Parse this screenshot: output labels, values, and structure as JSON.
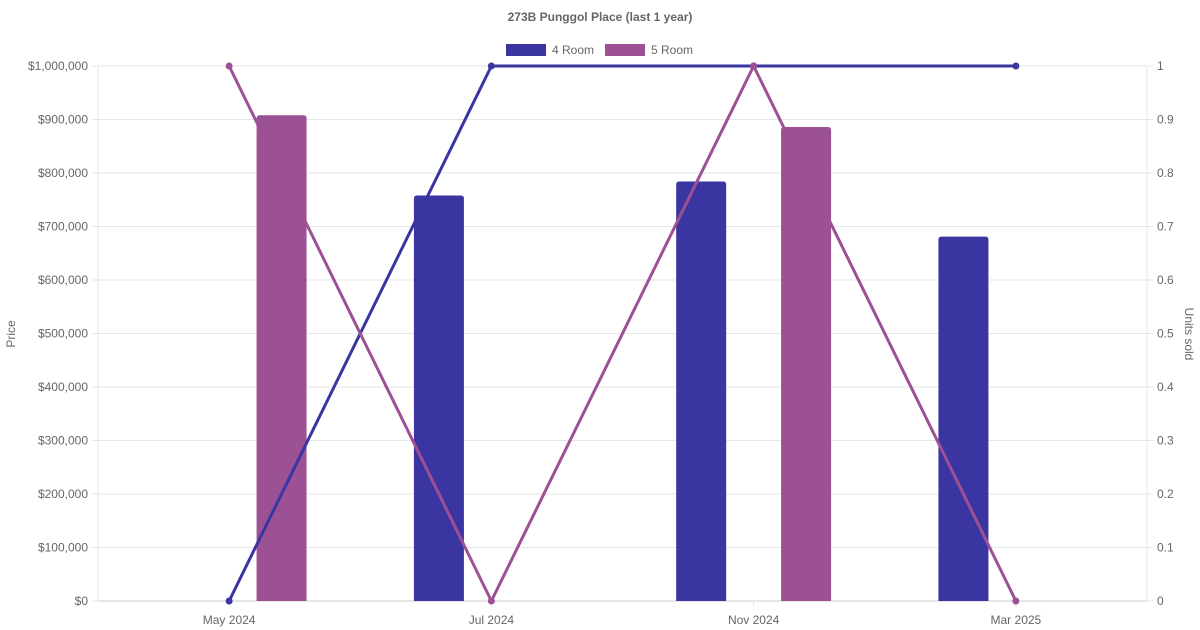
{
  "chart_data": {
    "type": "bar",
    "title": "273B Punggol Place (last 1 year)",
    "categories": [
      "May 2024",
      "Jul 2024",
      "Nov 2024",
      "Mar 2025"
    ],
    "y_left": {
      "label": "Price",
      "ylim": [
        0,
        1000000
      ],
      "ticks": [
        "$0",
        "$100,000",
        "$200,000",
        "$300,000",
        "$400,000",
        "$500,000",
        "$600,000",
        "$700,000",
        "$800,000",
        "$900,000",
        "$1,000,000"
      ],
      "tick_values": [
        0,
        100000,
        200000,
        300000,
        400000,
        500000,
        600000,
        700000,
        800000,
        900000,
        1000000
      ]
    },
    "y_right": {
      "label": "Units sold",
      "ylim": [
        0,
        1
      ],
      "ticks": [
        "0",
        "0.1",
        "0.2",
        "0.3",
        "0.4",
        "0.5",
        "0.6",
        "0.7",
        "0.8",
        "0.9",
        "1"
      ],
      "tick_values": [
        0,
        0.1,
        0.2,
        0.3,
        0.4,
        0.5,
        0.6,
        0.7,
        0.8,
        0.9,
        1
      ]
    },
    "grid": true,
    "legend_position": "top-center",
    "series": [
      {
        "name": "4 Room",
        "color": "#3a35a0",
        "price": [
          null,
          758000,
          784000,
          681000
        ],
        "units": [
          0,
          1,
          1,
          1
        ]
      },
      {
        "name": "5 Room",
        "color": "#9c5195",
        "price": [
          908000,
          null,
          886000,
          null
        ],
        "units": [
          1,
          0,
          1,
          0
        ]
      }
    ]
  }
}
